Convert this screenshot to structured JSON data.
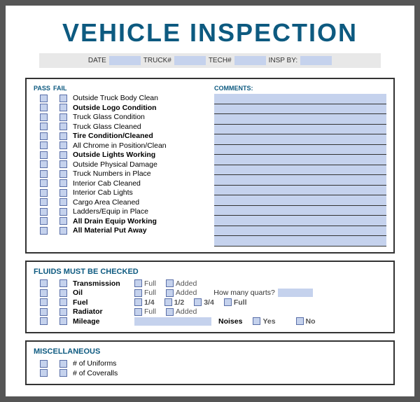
{
  "title": "VEHICLE INSPECTION",
  "header": {
    "date": "DATE",
    "truck": "TRUCK#",
    "tech": "TECH#",
    "insp": "INSP BY:"
  },
  "columns": {
    "pass": "PASS",
    "fail": "FAIL",
    "comments": "COMMENTS:"
  },
  "items": [
    {
      "label": "Outside Truck Body Clean",
      "bold": false
    },
    {
      "label": "Outside Logo Condition",
      "bold": true
    },
    {
      "label": "Truck Glass Condition",
      "bold": false
    },
    {
      "label": "Truck Glass Cleaned",
      "bold": false
    },
    {
      "label": "Tire Condition/Cleaned",
      "bold": true
    },
    {
      "label": "All Chrome in Position/Clean",
      "bold": false
    },
    {
      "label": "Outside Lights Working",
      "bold": true
    },
    {
      "label": "Outside Physical Damage",
      "bold": false
    },
    {
      "label": "Truck Numbers in Place",
      "bold": false
    },
    {
      "label": "Interior Cab Cleaned",
      "bold": false
    },
    {
      "label": "Interior Cab Lights",
      "bold": false
    },
    {
      "label": "Cargo Area Cleaned",
      "bold": false
    },
    {
      "label": "Ladders/Equip in Place",
      "bold": false
    },
    {
      "label": "All Drain Equip Working",
      "bold": true
    },
    {
      "label": "All Material Put Away",
      "bold": true
    }
  ],
  "fluids": {
    "title": "FLUIDS MUST BE CHECKED",
    "transmission": {
      "label": "Transmission",
      "opts": [
        "Full",
        "Added"
      ]
    },
    "oil": {
      "label": "Oil",
      "opts": [
        "Full",
        "Added"
      ],
      "extra": "How many quarts?"
    },
    "fuel": {
      "label": "Fuel",
      "opts": [
        "1/4",
        "1/2",
        "3/4",
        "Full"
      ]
    },
    "radiator": {
      "label": "Radiator",
      "opts": [
        "Full",
        "Added"
      ]
    },
    "mileage": {
      "label": "Mileage",
      "noises": "Noises",
      "yes": "Yes",
      "no": "No"
    }
  },
  "misc": {
    "title": "MISCELLANEOUS",
    "items": [
      "# of Uniforms",
      "# of Coveralls"
    ]
  }
}
